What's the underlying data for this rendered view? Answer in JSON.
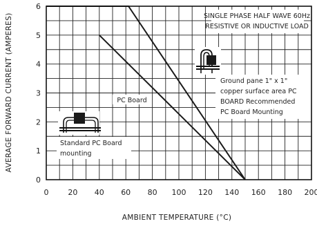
{
  "chart_data": {
    "type": "line",
    "xlabel": "AMBIENT TEMPERATURE (°C)",
    "ylabel": "AVERAGE FORWARD CURRENT (AMPERES)",
    "xlim": [
      0,
      200
    ],
    "ylim": [
      0,
      6
    ],
    "x_ticks": [
      "0",
      "20",
      "40",
      "60",
      "80",
      "100",
      "120",
      "140",
      "160",
      "180",
      "200"
    ],
    "y_ticks": [
      "0",
      "1",
      "2",
      "3",
      "4",
      "5",
      "6"
    ],
    "grid": true,
    "series": [
      {
        "x": [
          0,
          62,
          150
        ],
        "y": [
          6,
          6,
          0
        ]
      },
      {
        "x": [
          40,
          150
        ],
        "y": [
          5,
          0
        ]
      }
    ],
    "annotations": [
      "SINGLE PHASE HALF WAVE 60Hz",
      "RESISTIVE OR INDUCTIVE LOAD",
      "PC Board",
      "Ground pane 1\" x 1\"",
      "copper surface area PC",
      "BOARD Recommended",
      "PC Board Mounting",
      "Standard PC Board",
      "mounting"
    ]
  }
}
